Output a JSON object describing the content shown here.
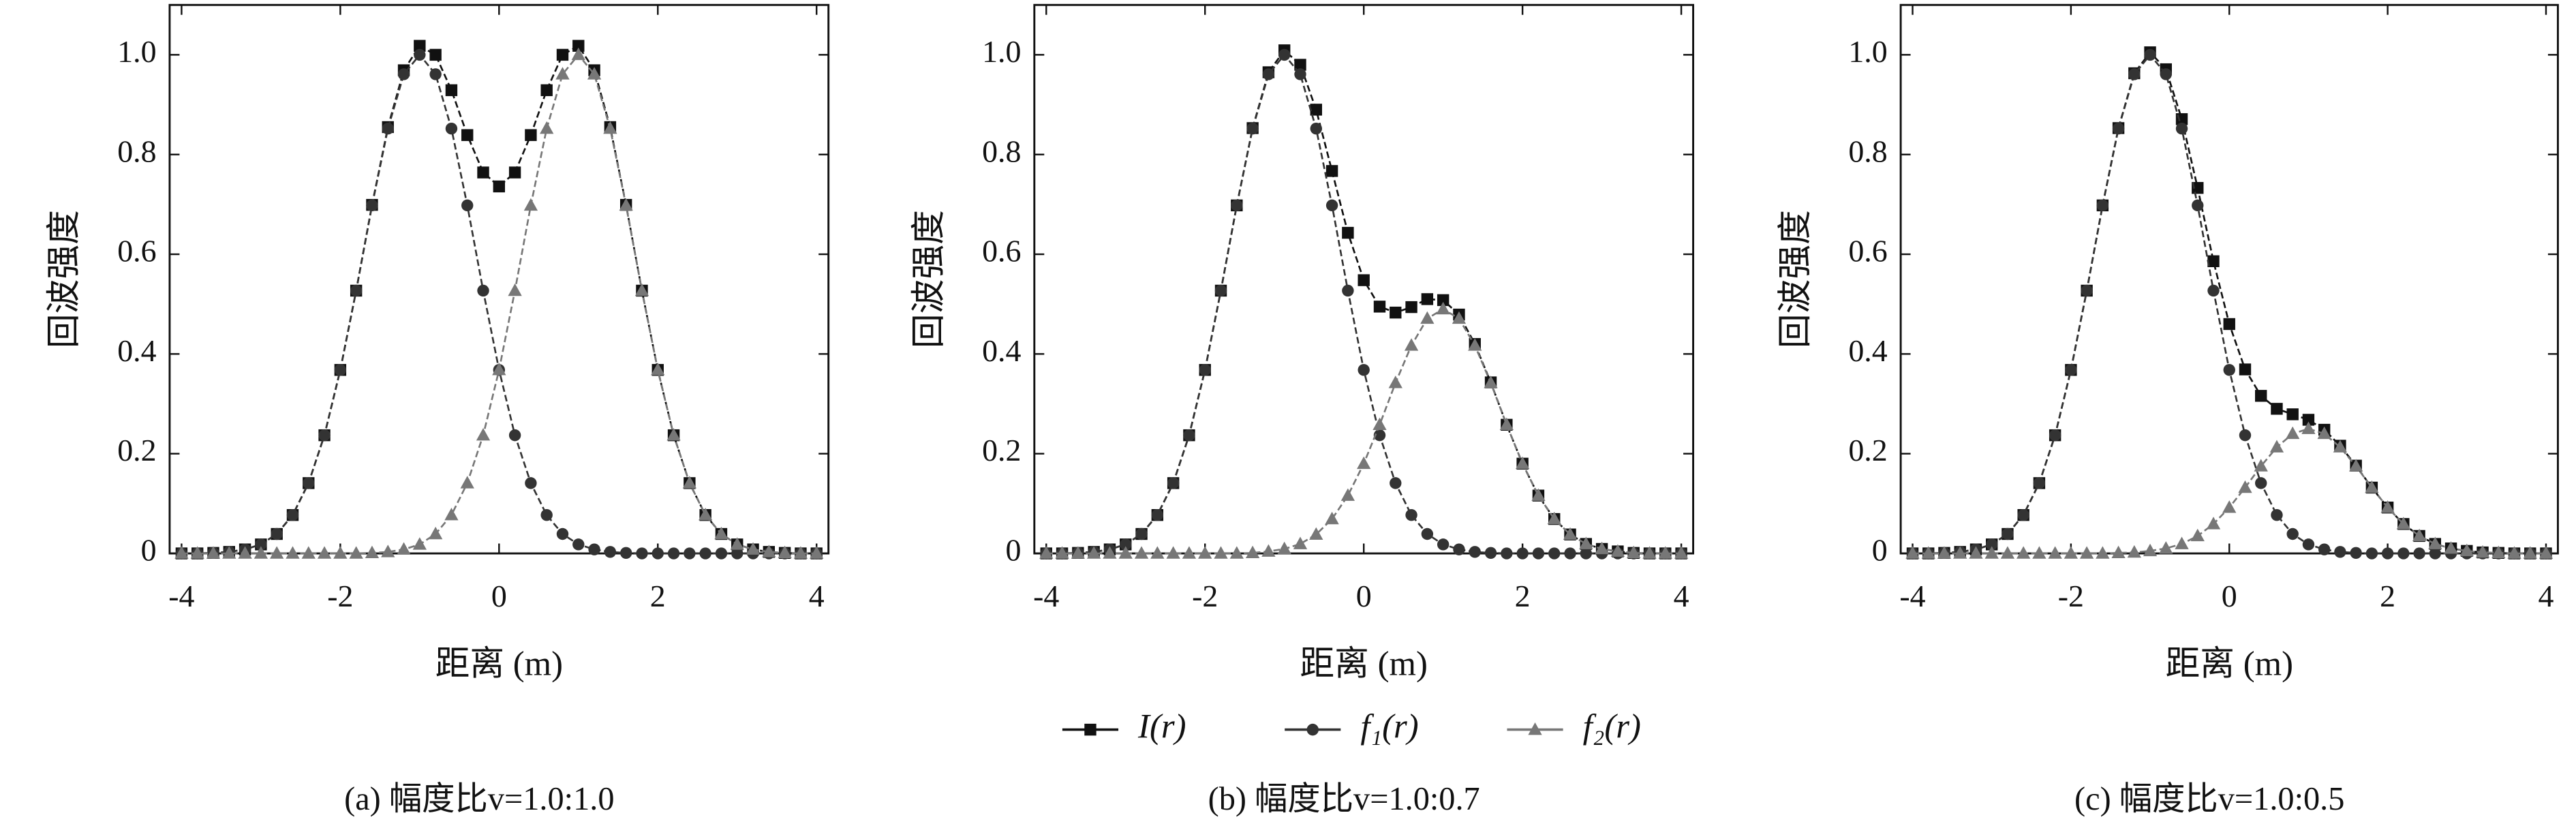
{
  "chart_data": [
    {
      "type": "line",
      "caption": "(a) 幅度比v=1.0:1.0",
      "xlabel": "距离 (m)",
      "ylabel": "回波强度",
      "x": [
        -4,
        -3.8,
        -3.6,
        -3.4,
        -3.2,
        -3,
        -2.8,
        -2.6,
        -2.4,
        -2.2,
        -2,
        -1.8,
        -1.6,
        -1.4,
        -1.2,
        -1,
        -0.8,
        -0.6,
        -0.4,
        -0.2,
        0,
        0.2,
        0.4,
        0.6,
        0.8,
        1,
        1.2,
        1.4,
        1.6,
        1.8,
        2,
        2.2,
        2.4,
        2.6,
        2.8,
        3,
        3.2,
        3.4,
        3.6,
        3.8,
        4
      ],
      "xlim": [
        -4.15,
        4.15
      ],
      "xticks": [
        -4,
        -2,
        0,
        2,
        4
      ],
      "ylim": [
        0,
        1.1
      ],
      "yticks": [
        0,
        0.2,
        0.4,
        0.6,
        0.8,
        {
          "value": 1,
          "label": "1.0"
        }
      ],
      "series": [
        {
          "color": "#111111",
          "marker": "square",
          "values": [
            0,
            0,
            0.001,
            0.003,
            0.008,
            0.018,
            0.039,
            0.077,
            0.141,
            0.237,
            0.368,
            0.527,
            0.699,
            0.855,
            0.969,
            1.018,
            1.0,
            0.929,
            0.839,
            0.764,
            0.736,
            0.764,
            0.839,
            0.929,
            1.0,
            1.018,
            0.969,
            0.855,
            0.699,
            0.527,
            0.368,
            0.237,
            0.141,
            0.077,
            0.039,
            0.018,
            0.008,
            0.003,
            0.001,
            0,
            0
          ]
        },
        {
          "color": "#333333",
          "marker": "circle",
          "values": [
            0,
            0,
            0.001,
            0.003,
            0.008,
            0.018,
            0.039,
            0.077,
            0.141,
            0.237,
            0.368,
            0.527,
            0.698,
            0.852,
            0.961,
            1,
            0.961,
            0.852,
            0.698,
            0.527,
            0.368,
            0.237,
            0.141,
            0.077,
            0.039,
            0.018,
            0.008,
            0.003,
            0.001,
            0,
            0,
            0,
            0,
            0,
            0,
            0,
            0,
            0,
            0,
            0,
            0
          ]
        },
        {
          "color": "#777777",
          "marker": "triangle",
          "values": [
            0,
            0,
            0,
            0,
            0,
            0,
            0,
            0,
            0,
            0,
            0,
            0,
            0.001,
            0.003,
            0.008,
            0.018,
            0.039,
            0.077,
            0.141,
            0.237,
            0.368,
            0.527,
            0.698,
            0.852,
            0.961,
            1,
            0.961,
            0.852,
            0.698,
            0.527,
            0.368,
            0.237,
            0.141,
            0.077,
            0.039,
            0.018,
            0.008,
            0.003,
            0.001,
            0,
            0
          ]
        }
      ]
    },
    {
      "type": "line",
      "caption": "(b) 幅度比v=1.0:0.7",
      "xlabel": "距离 (m)",
      "ylabel": "回波强度",
      "x": [
        -4,
        -3.8,
        -3.6,
        -3.4,
        -3.2,
        -3,
        -2.8,
        -2.6,
        -2.4,
        -2.2,
        -2,
        -1.8,
        -1.6,
        -1.4,
        -1.2,
        -1,
        -0.8,
        -0.6,
        -0.4,
        -0.2,
        0,
        0.2,
        0.4,
        0.6,
        0.8,
        1,
        1.2,
        1.4,
        1.6,
        1.8,
        2,
        2.2,
        2.4,
        2.6,
        2.8,
        3,
        3.2,
        3.4,
        3.6,
        3.8,
        4
      ],
      "xlim": [
        -4.15,
        4.15
      ],
      "xticks": [
        -4,
        -2,
        0,
        2,
        4
      ],
      "ylim": [
        0,
        1.1
      ],
      "yticks": [
        0,
        0.2,
        0.4,
        0.6,
        0.8,
        {
          "value": 1,
          "label": "1.0"
        }
      ],
      "series": [
        {
          "name": "I(r)",
          "color": "#111111",
          "marker": "square",
          "values": [
            0,
            0,
            0.001,
            0.003,
            0.008,
            0.018,
            0.039,
            0.077,
            0.141,
            0.237,
            0.368,
            0.527,
            0.698,
            0.853,
            0.965,
            1.009,
            0.98,
            0.89,
            0.767,
            0.643,
            0.548,
            0.495,
            0.483,
            0.494,
            0.51,
            0.508,
            0.479,
            0.42,
            0.343,
            0.258,
            0.18,
            0.116,
            0.069,
            0.038,
            0.019,
            0.009,
            0.004,
            0.001,
            0,
            0,
            0
          ]
        },
        {
          "name": "f₁(r)",
          "color": "#333333",
          "marker": "circle",
          "values": [
            0,
            0,
            0.001,
            0.003,
            0.008,
            0.018,
            0.039,
            0.077,
            0.141,
            0.237,
            0.368,
            0.527,
            0.698,
            0.852,
            0.961,
            1,
            0.961,
            0.852,
            0.698,
            0.527,
            0.368,
            0.237,
            0.141,
            0.077,
            0.039,
            0.018,
            0.008,
            0.003,
            0.001,
            0,
            0,
            0,
            0,
            0,
            0,
            0,
            0,
            0,
            0,
            0,
            0
          ]
        },
        {
          "name": "f₂(r)",
          "color": "#777777",
          "marker": "triangle",
          "values": [
            0,
            0,
            0,
            0,
            0,
            0,
            0,
            0,
            0,
            0,
            0,
            0,
            0,
            0.001,
            0.004,
            0.009,
            0.019,
            0.038,
            0.069,
            0.116,
            0.18,
            0.258,
            0.342,
            0.417,
            0.471,
            0.49,
            0.471,
            0.417,
            0.342,
            0.258,
            0.18,
            0.116,
            0.069,
            0.038,
            0.019,
            0.009,
            0.004,
            0.001,
            0,
            0,
            0
          ]
        }
      ]
    },
    {
      "type": "line",
      "caption": "(c) 幅度比v=1.0:0.5",
      "xlabel": "距离 (m)",
      "ylabel": "回波强度",
      "x": [
        -4,
        -3.8,
        -3.6,
        -3.4,
        -3.2,
        -3,
        -2.8,
        -2.6,
        -2.4,
        -2.2,
        -2,
        -1.8,
        -1.6,
        -1.4,
        -1.2,
        -1,
        -0.8,
        -0.6,
        -0.4,
        -0.2,
        0,
        0.2,
        0.4,
        0.6,
        0.8,
        1,
        1.2,
        1.4,
        1.6,
        1.8,
        2,
        2.2,
        2.4,
        2.6,
        2.8,
        3,
        3.2,
        3.4,
        3.6,
        3.8,
        4
      ],
      "xlim": [
        -4.15,
        4.15
      ],
      "xticks": [
        -4,
        -2,
        0,
        2,
        4
      ],
      "ylim": [
        0,
        1.1
      ],
      "yticks": [
        0,
        0.2,
        0.4,
        0.6,
        0.8,
        {
          "value": 1,
          "label": "1.0"
        }
      ],
      "series": [
        {
          "color": "#111111",
          "marker": "square",
          "values": [
            0,
            0,
            0.001,
            0.003,
            0.008,
            0.018,
            0.039,
            0.077,
            0.141,
            0.237,
            0.368,
            0.527,
            0.698,
            0.853,
            0.963,
            1.005,
            0.971,
            0.871,
            0.733,
            0.586,
            0.46,
            0.369,
            0.316,
            0.29,
            0.279,
            0.268,
            0.248,
            0.216,
            0.176,
            0.132,
            0.092,
            0.059,
            0.035,
            0.019,
            0.01,
            0.005,
            0.002,
            0.001,
            0,
            0,
            0
          ]
        },
        {
          "color": "#333333",
          "marker": "circle",
          "values": [
            0,
            0,
            0.001,
            0.003,
            0.008,
            0.018,
            0.039,
            0.077,
            0.141,
            0.237,
            0.368,
            0.527,
            0.698,
            0.852,
            0.961,
            1,
            0.961,
            0.852,
            0.698,
            0.527,
            0.368,
            0.237,
            0.141,
            0.077,
            0.039,
            0.018,
            0.008,
            0.003,
            0.001,
            0,
            0,
            0,
            0,
            0,
            0,
            0,
            0,
            0,
            0,
            0,
            0
          ]
        },
        {
          "color": "#777777",
          "marker": "triangle",
          "values": [
            0,
            0,
            0,
            0,
            0,
            0,
            0,
            0,
            0,
            0,
            0,
            0,
            0,
            0.001,
            0.002,
            0.005,
            0.01,
            0.019,
            0.035,
            0.059,
            0.092,
            0.132,
            0.175,
            0.213,
            0.24,
            0.25,
            0.24,
            0.213,
            0.175,
            0.132,
            0.092,
            0.059,
            0.035,
            0.019,
            0.01,
            0.005,
            0.002,
            0.001,
            0,
            0,
            0
          ]
        }
      ]
    }
  ]
}
